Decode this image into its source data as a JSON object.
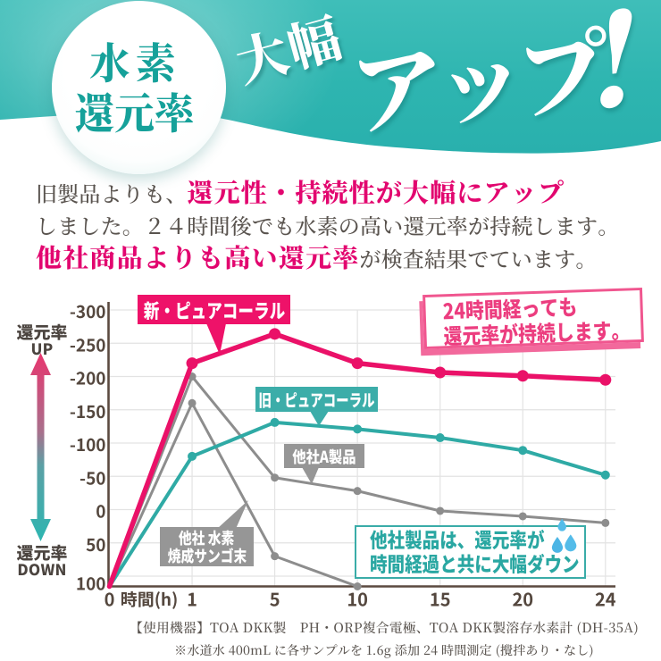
{
  "colors": {
    "header_teal": "#2fb6b1",
    "badge_text_teal": "#16a19a",
    "magenta_emphasis": "#e2066f",
    "dark_text": "#59534e",
    "line_new_pink": "#ea1168",
    "line_old_teal": "#2faaa5",
    "line_gray": "#8d8d8d",
    "label_new_bg": "#ee1269",
    "label_old_bg": "#3cada9",
    "label_gray_bg": "#969696",
    "axis_brown": "#5b4a40",
    "grid_gray": "#e3e3e3",
    "callout_pink": "#ec3d7f",
    "note_teal": "#2aa7a2",
    "drop_blue": "#4cb5e5"
  },
  "header": {
    "badge_line1": "水素",
    "badge_line2": "還元率",
    "title_small": "大幅",
    "title_large": "アップ!"
  },
  "intro": {
    "line1_normal": "旧製品よりも、",
    "line1_emphasis": "還元性・持続性が大幅にアップ",
    "line2": "しました。２４時間後でも水素の高い還元率が持続します。",
    "line3_emphasis": "他社商品よりも高い還元率",
    "line3_normal": "が検査結果でています。"
  },
  "chart": {
    "y_axis_top_label": {
      "line1": "還元率",
      "line2": "UP"
    },
    "y_axis_bottom_label": {
      "line1": "還元率",
      "line2": "DOWN"
    },
    "x_axis_title": "時間(h)",
    "series_labels": {
      "new_product": "新・ピュアコーラル",
      "old_product": "旧・ピュアコーラル",
      "company_a": "他社A製品",
      "coral_line1": "他社 水素",
      "coral_line2": "焼成サンゴ末"
    },
    "callout": {
      "line1": "24時間経っても",
      "line2": "還元率が持続します。"
    },
    "note": {
      "line1": "他社製品は、還元率が",
      "line2": "時間経過と共に大幅ダウン"
    }
  },
  "chart_data": {
    "type": "line",
    "x": [
      0,
      1,
      5,
      10,
      15,
      20,
      24
    ],
    "x_tick_labels": [
      "0",
      "1",
      "5",
      "10",
      "15",
      "20",
      "24"
    ],
    "xlabel": "時間(h)",
    "y_ticks": [
      -300,
      -250,
      -200,
      -150,
      -100,
      -50,
      0,
      50,
      100
    ],
    "ylim": [
      -300,
      100
    ],
    "y_inverted": true,
    "grid": true,
    "series": [
      {
        "name": "新・ピュアコーラル",
        "color": "#ea1168",
        "values": [
          100,
          -220,
          -264,
          -220,
          -206,
          -201,
          -195
        ]
      },
      {
        "name": "旧・ピュアコーラル",
        "color": "#2faaa5",
        "values": [
          100,
          -80,
          -131,
          -121,
          -108,
          -89,
          -52
        ]
      },
      {
        "name": "他社A製品",
        "color": "#8d8d8d",
        "values": [
          100,
          -200,
          -48,
          -28,
          2,
          10,
          20
        ]
      },
      {
        "name": "他社 水素焼成サンゴ末",
        "color": "#8d8d8d",
        "values": [
          100,
          -160,
          70,
          100,
          null,
          null,
          null
        ]
      }
    ]
  },
  "footer": {
    "line1": "【使用機器】TOA DKK製　PH・ORP複合電極、TOA DKK製溶存水素計 (DH-35A)",
    "line2": "※水道水 400mL に各サンプルを 1.6g 添加 24 時間測定 (攪拌あり・なし)"
  }
}
